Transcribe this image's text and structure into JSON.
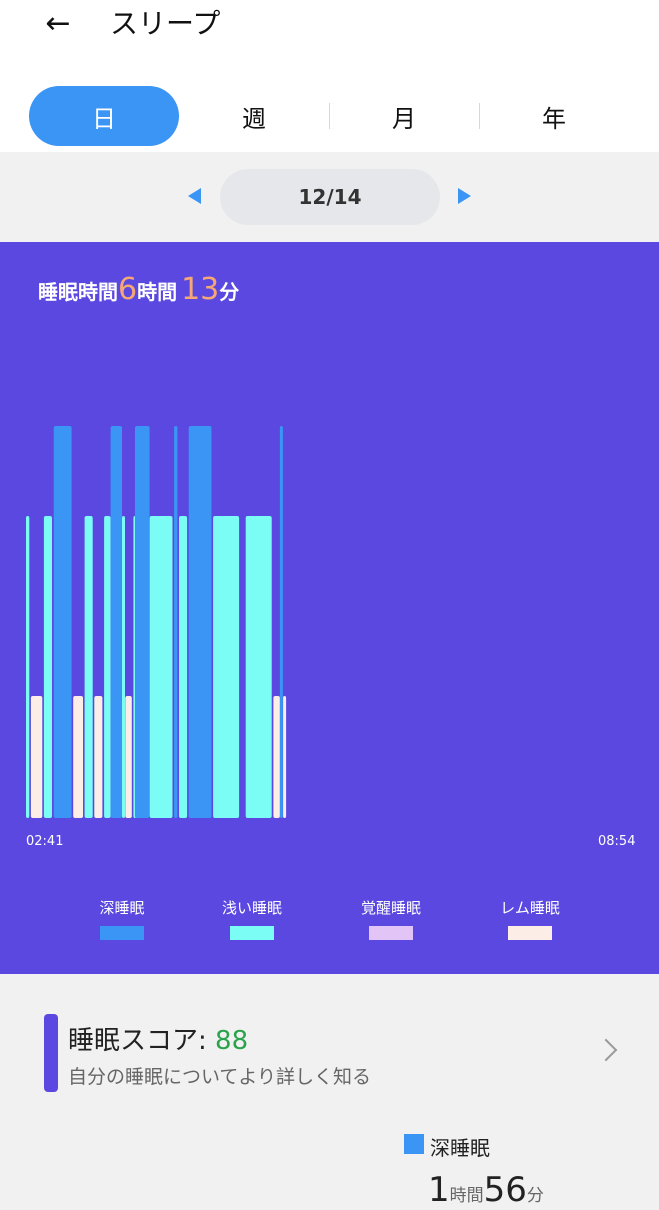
{
  "header": {
    "title": "スリープ",
    "back_icon": "arrow-left-icon"
  },
  "tabs": [
    {
      "label": "日",
      "active": true
    },
    {
      "label": "週",
      "active": false
    },
    {
      "label": "月",
      "active": false
    },
    {
      "label": "年",
      "active": false
    }
  ],
  "date_nav": {
    "date": "12/14"
  },
  "summary": {
    "prefix": "睡眠時間",
    "hours": "6",
    "hours_unit": "時間",
    "minutes": "13",
    "minutes_unit": "分"
  },
  "colors": {
    "panel": "#5b48e0",
    "accent": "#3a95f5",
    "deep": "#3a95f5",
    "light": "#7bfdf6",
    "awake": "#e3c4f7",
    "rem": "#fcede6",
    "score_value": "#2aa34a",
    "duration_number": "#f5a875"
  },
  "chart_data": {
    "type": "bar",
    "title": "",
    "x_start": "02:41",
    "x_end": "08:54",
    "stage_levels": {
      "deep": 1,
      "light": 2,
      "rem": 3
    },
    "segments": [
      {
        "stage": "light",
        "start": "02:41",
        "end": "02:43"
      },
      {
        "stage": "rem",
        "start": "02:44",
        "end": "02:51"
      },
      {
        "stage": "light",
        "start": "02:52",
        "end": "02:57"
      },
      {
        "stage": "deep",
        "start": "02:58",
        "end": "03:09"
      },
      {
        "stage": "rem",
        "start": "03:10",
        "end": "03:16"
      },
      {
        "stage": "light",
        "start": "03:17",
        "end": "03:22"
      },
      {
        "stage": "rem",
        "start": "03:23",
        "end": "03:28"
      },
      {
        "stage": "light",
        "start": "03:29",
        "end": "03:33"
      },
      {
        "stage": "deep",
        "start": "03:33",
        "end": "03:40"
      },
      {
        "stage": "light",
        "start": "03:40",
        "end": "03:41"
      },
      {
        "stage": "rem",
        "start": "03:42",
        "end": "03:46"
      },
      {
        "stage": "light",
        "start": "03:47",
        "end": "03:48"
      },
      {
        "stage": "deep",
        "start": "03:48",
        "end": "03:57"
      },
      {
        "stage": "light",
        "start": "03:57",
        "end": "04:11"
      },
      {
        "stage": "deep",
        "start": "04:12",
        "end": "04:14"
      },
      {
        "stage": "light",
        "start": "04:15",
        "end": "04:20"
      },
      {
        "stage": "deep",
        "start": "04:21",
        "end": "04:35"
      },
      {
        "stage": "light",
        "start": "04:36",
        "end": "04:52"
      },
      {
        "stage": "light",
        "start": "04:56",
        "end": "05:12"
      },
      {
        "stage": "rem",
        "start": "05:13",
        "end": "05:17"
      },
      {
        "stage": "deep",
        "start": "05:17",
        "end": "05:18"
      },
      {
        "stage": "rem",
        "start": "05:19",
        "end": "05:20"
      }
    ],
    "legend": [
      {
        "name": "深睡眠",
        "stage": "deep"
      },
      {
        "name": "浅い睡眠",
        "stage": "light"
      },
      {
        "name": "覚醒睡眠",
        "stage": "awake"
      },
      {
        "name": "レム睡眠",
        "stage": "rem"
      }
    ]
  },
  "score": {
    "label": "睡眠スコア: ",
    "value": "88",
    "subtitle": "自分の睡眠についてより詳しく知る"
  },
  "deep_summary": {
    "label": "深睡眠",
    "hours": "1",
    "hours_unit": "時間",
    "minutes": "56",
    "minutes_unit": "分"
  }
}
